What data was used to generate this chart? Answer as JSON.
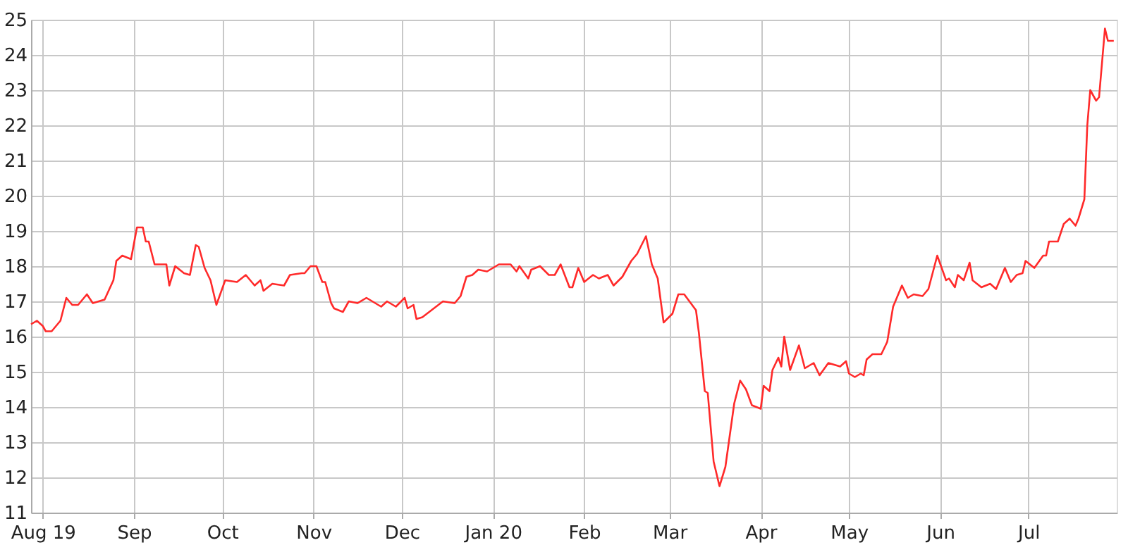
{
  "chart_data": {
    "type": "line",
    "xlim": [
      "2019-07-28",
      "2020-07-31"
    ],
    "ylim": [
      11,
      25
    ],
    "yticks": [
      11,
      12,
      13,
      14,
      15,
      16,
      17,
      18,
      19,
      20,
      21,
      22,
      23,
      24,
      25
    ],
    "xticks": [
      {
        "value": "2019-08-01",
        "label": "Aug 19"
      },
      {
        "value": "2019-09-01",
        "label": "Sep"
      },
      {
        "value": "2019-10-01",
        "label": "Oct"
      },
      {
        "value": "2019-11-01",
        "label": "Nov"
      },
      {
        "value": "2019-12-01",
        "label": "Dec"
      },
      {
        "value": "2020-01-01",
        "label": "Jan 20"
      },
      {
        "value": "2020-02-01",
        "label": "Feb"
      },
      {
        "value": "2020-03-01",
        "label": "Mar"
      },
      {
        "value": "2020-04-01",
        "label": "Apr"
      },
      {
        "value": "2020-05-01",
        "label": "May"
      },
      {
        "value": "2020-06-01",
        "label": "Jun"
      },
      {
        "value": "2020-07-01",
        "label": "Jul"
      }
    ],
    "grid": true,
    "legend": false,
    "marker": "none",
    "line_style": "solid",
    "x": [
      "2019-07-28",
      "2019-07-30",
      "2019-08-01",
      "2019-08-02",
      "2019-08-04",
      "2019-08-06",
      "2019-08-07",
      "2019-08-09",
      "2019-08-11",
      "2019-08-13",
      "2019-08-16",
      "2019-08-18",
      "2019-08-22",
      "2019-08-25",
      "2019-08-26",
      "2019-08-28",
      "2019-08-31",
      "2019-09-02",
      "2019-09-04",
      "2019-09-05",
      "2019-09-06",
      "2019-09-08",
      "2019-09-12",
      "2019-09-13",
      "2019-09-15",
      "2019-09-18",
      "2019-09-20",
      "2019-09-22",
      "2019-09-23",
      "2019-09-25",
      "2019-09-27",
      "2019-09-29",
      "2019-10-02",
      "2019-10-06",
      "2019-10-09",
      "2019-10-12",
      "2019-10-14",
      "2019-10-15",
      "2019-10-18",
      "2019-10-22",
      "2019-10-24",
      "2019-10-28",
      "2019-10-29",
      "2019-10-31",
      "2019-11-02",
      "2019-11-04",
      "2019-11-05",
      "2019-11-07",
      "2019-11-08",
      "2019-11-11",
      "2019-11-13",
      "2019-11-16",
      "2019-11-19",
      "2019-11-21",
      "2019-11-24",
      "2019-11-26",
      "2019-11-29",
      "2019-12-02",
      "2019-12-03",
      "2019-12-05",
      "2019-12-06",
      "2019-12-08",
      "2019-12-15",
      "2019-12-19",
      "2019-12-21",
      "2019-12-23",
      "2019-12-25",
      "2019-12-27",
      "2019-12-30",
      "2020-01-03",
      "2020-01-07",
      "2020-01-09",
      "2020-01-10",
      "2020-01-13",
      "2020-01-14",
      "2020-01-17",
      "2020-01-20",
      "2020-01-22",
      "2020-01-24",
      "2020-01-27",
      "2020-01-28",
      "2020-01-30",
      "2020-02-01",
      "2020-02-04",
      "2020-02-06",
      "2020-02-09",
      "2020-02-11",
      "2020-02-14",
      "2020-02-17",
      "2020-02-19",
      "2020-02-22",
      "2020-02-24",
      "2020-02-26",
      "2020-02-28",
      "2020-03-02",
      "2020-03-04",
      "2020-03-06",
      "2020-03-10",
      "2020-03-11",
      "2020-03-13",
      "2020-03-14",
      "2020-03-16",
      "2020-03-18",
      "2020-03-20",
      "2020-03-23",
      "2020-03-25",
      "2020-03-27",
      "2020-03-29",
      "2020-04-01",
      "2020-04-02",
      "2020-04-04",
      "2020-04-05",
      "2020-04-07",
      "2020-04-08",
      "2020-04-09",
      "2020-04-11",
      "2020-04-14",
      "2020-04-16",
      "2020-04-19",
      "2020-04-21",
      "2020-04-24",
      "2020-04-28",
      "2020-04-30",
      "2020-05-01",
      "2020-05-03",
      "2020-05-05",
      "2020-05-06",
      "2020-05-07",
      "2020-05-09",
      "2020-05-12",
      "2020-05-14",
      "2020-05-16",
      "2020-05-19",
      "2020-05-21",
      "2020-05-23",
      "2020-05-26",
      "2020-05-28",
      "2020-05-31",
      "2020-06-03",
      "2020-06-04",
      "2020-06-06",
      "2020-06-07",
      "2020-06-09",
      "2020-06-11",
      "2020-06-12",
      "2020-06-15",
      "2020-06-18",
      "2020-06-20",
      "2020-06-23",
      "2020-06-25",
      "2020-06-27",
      "2020-06-29",
      "2020-06-30",
      "2020-07-03",
      "2020-07-06",
      "2020-07-07",
      "2020-07-08",
      "2020-07-11",
      "2020-07-13",
      "2020-07-15",
      "2020-07-17",
      "2020-07-18",
      "2020-07-20",
      "2020-07-21",
      "2020-07-22",
      "2020-07-24",
      "2020-07-25",
      "2020-07-27",
      "2020-07-28",
      "2020-07-30"
    ],
    "series": [
      {
        "color": "#ff2a2a",
        "values": [
          16.35,
          16.45,
          16.3,
          16.15,
          16.15,
          16.35,
          16.45,
          17.1,
          16.9,
          16.9,
          17.2,
          16.95,
          17.05,
          17.6,
          18.15,
          18.3,
          18.2,
          19.1,
          19.1,
          18.7,
          18.7,
          18.05,
          18.05,
          17.45,
          18.0,
          17.8,
          17.75,
          18.6,
          18.55,
          17.95,
          17.6,
          16.9,
          17.6,
          17.55,
          17.75,
          17.45,
          17.6,
          17.3,
          17.5,
          17.45,
          17.75,
          17.8,
          17.8,
          18.0,
          18.0,
          17.55,
          17.55,
          16.95,
          16.8,
          16.7,
          17.0,
          16.95,
          17.1,
          17.0,
          16.85,
          17.0,
          16.85,
          17.1,
          16.8,
          16.9,
          16.5,
          16.55,
          17.0,
          16.95,
          17.15,
          17.7,
          17.75,
          17.9,
          17.85,
          18.05,
          18.05,
          17.85,
          18.0,
          17.65,
          17.9,
          18.0,
          17.75,
          17.75,
          18.05,
          17.4,
          17.4,
          17.95,
          17.55,
          17.75,
          17.65,
          17.75,
          17.45,
          17.7,
          18.15,
          18.35,
          18.85,
          18.05,
          17.65,
          16.4,
          16.65,
          17.2,
          17.2,
          16.75,
          16.1,
          14.45,
          14.4,
          12.45,
          11.75,
          12.3,
          14.1,
          14.75,
          14.5,
          14.05,
          13.95,
          14.6,
          14.45,
          15.05,
          15.4,
          15.15,
          16.0,
          15.05,
          15.75,
          15.1,
          15.25,
          14.9,
          15.25,
          15.15,
          15.3,
          14.95,
          14.85,
          14.95,
          14.9,
          15.35,
          15.5,
          15.5,
          15.85,
          16.85,
          17.45,
          17.1,
          17.2,
          17.15,
          17.35,
          18.3,
          17.6,
          17.65,
          17.4,
          17.75,
          17.6,
          18.1,
          17.6,
          17.4,
          17.5,
          17.35,
          17.95,
          17.55,
          17.75,
          17.8,
          18.15,
          17.95,
          18.3,
          18.3,
          18.7,
          18.7,
          19.2,
          19.35,
          19.15,
          19.35,
          19.9,
          22.0,
          23.0,
          22.7,
          22.8,
          24.75,
          24.4,
          24.4
        ]
      }
    ]
  }
}
